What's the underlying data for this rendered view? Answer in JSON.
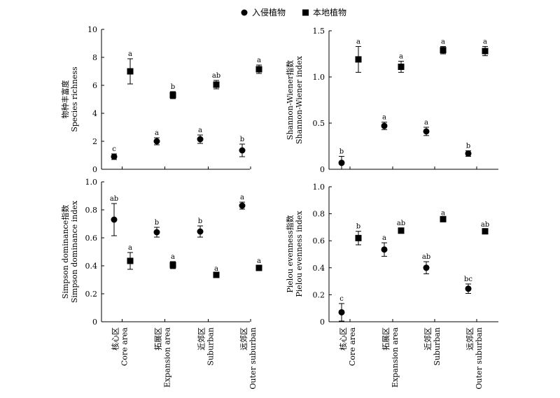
{
  "legend": {
    "invasive": "入侵植物",
    "native": "本地植物"
  },
  "x_categories": [
    {
      "zh": "核心区",
      "en": "Core area"
    },
    {
      "zh": "拓展区",
      "en": "Expansion area"
    },
    {
      "zh": "近郊区",
      "en": "Suburban"
    },
    {
      "zh": "远郊区",
      "en": "Outer suburban"
    }
  ],
  "chart_data": [
    {
      "type": "scatter",
      "id": "richness",
      "ylabel_zh": "物种丰富度",
      "ylabel_en": "Species richness",
      "ylim": [
        0,
        10
      ],
      "yticks": [
        "0",
        "2",
        "4",
        "6",
        "8",
        "10"
      ],
      "series": [
        {
          "name": "入侵植物",
          "marker": "circle",
          "values": [
            0.9,
            2.0,
            2.15,
            1.35
          ],
          "errors": [
            0.2,
            0.25,
            0.3,
            0.45
          ],
          "letters": [
            "c",
            "a",
            "a",
            "b"
          ]
        },
        {
          "name": "本地植物",
          "marker": "square",
          "values": [
            7.0,
            5.3,
            6.05,
            7.15
          ],
          "errors": [
            0.9,
            0.25,
            0.3,
            0.3
          ],
          "letters": [
            "a",
            "b",
            "ab",
            "a"
          ]
        }
      ]
    },
    {
      "type": "scatter",
      "id": "shannon",
      "ylabel_zh": "Shannon-Wiener指数",
      "ylabel_en": "Shannon-Wiener index",
      "ylim": [
        0,
        1.5
      ],
      "yticks": [
        "0",
        "0.5",
        "1.0",
        "1.5"
      ],
      "series": [
        {
          "name": "入侵植物",
          "marker": "circle",
          "values": [
            0.07,
            0.47,
            0.41,
            0.17
          ],
          "errors": [
            0.07,
            0.04,
            0.045,
            0.03
          ],
          "letters": [
            "b",
            "a",
            "a",
            "b"
          ]
        },
        {
          "name": "本地植物",
          "marker": "square",
          "values": [
            1.19,
            1.11,
            1.29,
            1.28
          ],
          "errors": [
            0.14,
            0.06,
            0.04,
            0.05
          ],
          "letters": [
            "a",
            "a",
            "a",
            "a"
          ]
        }
      ]
    },
    {
      "type": "scatter",
      "id": "simpson",
      "ylabel_zh": "Simpson dominance指数",
      "ylabel_en": "Simpson dominance index",
      "ylim": [
        0,
        1.0
      ],
      "yticks": [
        "0",
        "0.2",
        "0.4",
        "0.6",
        "0.8",
        "1.0"
      ],
      "series": [
        {
          "name": "入侵植物",
          "marker": "circle",
          "values": [
            0.73,
            0.64,
            0.645,
            0.83
          ],
          "errors": [
            0.115,
            0.035,
            0.04,
            0.025
          ],
          "letters": [
            "ab",
            "b",
            "b",
            "a"
          ]
        },
        {
          "name": "本地植物",
          "marker": "square",
          "values": [
            0.435,
            0.405,
            0.335,
            0.385
          ],
          "errors": [
            0.06,
            0.025,
            0.01,
            0.015
          ],
          "letters": [
            "a",
            "a",
            "a",
            "a"
          ]
        }
      ]
    },
    {
      "type": "scatter",
      "id": "pielou",
      "ylabel_zh": "Pielou evenness指数",
      "ylabel_en": "Pielou evenness index",
      "ylim": [
        0,
        1.0
      ],
      "yticks": [
        "0",
        "0.2",
        "0.4",
        "0.6",
        "0.8",
        "1.0"
      ],
      "series": [
        {
          "name": "入侵植物",
          "marker": "circle",
          "values": [
            0.07,
            0.535,
            0.4,
            0.245
          ],
          "errors": [
            0.065,
            0.05,
            0.045,
            0.035
          ],
          "letters": [
            "c",
            "a",
            "ab",
            "bc"
          ]
        },
        {
          "name": "本地植物",
          "marker": "square",
          "values": [
            0.62,
            0.675,
            0.76,
            0.67
          ],
          "errors": [
            0.05,
            0.02,
            0.01,
            0.015
          ],
          "letters": [
            "b",
            "ab",
            "a",
            "ab"
          ]
        }
      ]
    }
  ]
}
